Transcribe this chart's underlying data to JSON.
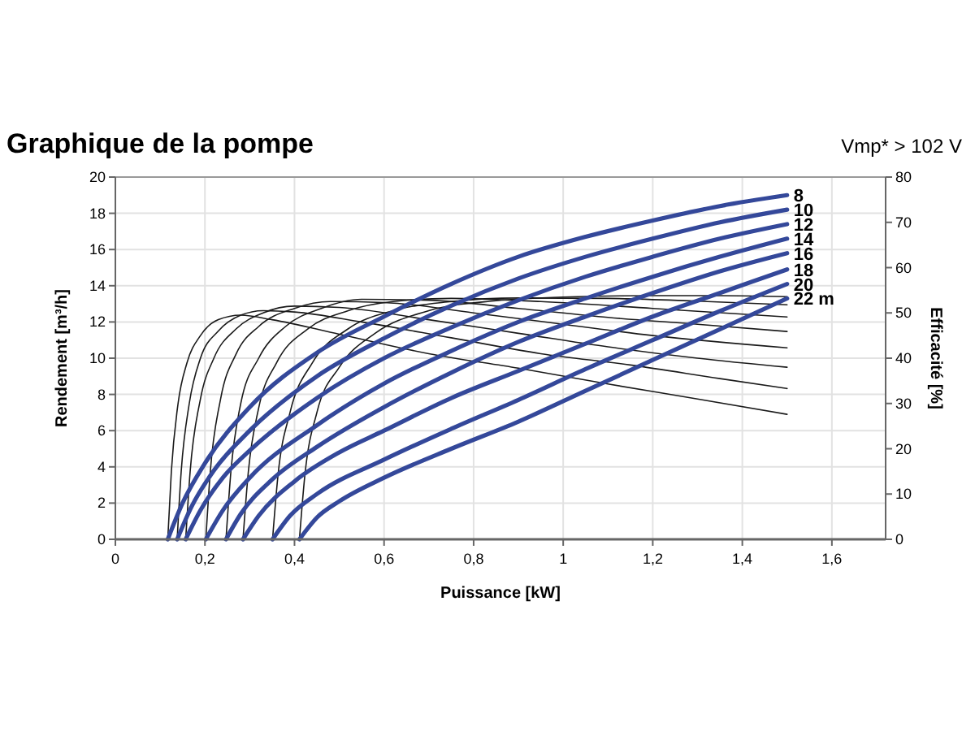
{
  "chart_data": {
    "type": "line",
    "title": "Graphique de la pompe",
    "annotations": [
      "Vmp* > 102 V"
    ],
    "xlabel": "Puissance [kW]",
    "ylabel": "Rendement [m³/h]",
    "y2label": "Efficacité [%]",
    "xlim": [
      0,
      1.72
    ],
    "xticks": [
      0,
      {
        "value": 0.2,
        "label": "0,2"
      },
      {
        "value": 0.4,
        "label": "0,4"
      },
      {
        "value": 0.6,
        "label": "0,6"
      },
      {
        "value": 0.8,
        "label": "0,8"
      },
      1,
      {
        "value": 1.2,
        "label": "1,2"
      },
      {
        "value": 1.4,
        "label": "1,4"
      },
      {
        "value": 1.6,
        "label": "1,6"
      }
    ],
    "ylim": [
      0,
      20
    ],
    "yticks": [
      0,
      2,
      4,
      6,
      8,
      10,
      12,
      14,
      16,
      18,
      20
    ],
    "y2lim": [
      0,
      80
    ],
    "y2ticks": [
      0,
      10,
      20,
      30,
      40,
      50,
      60,
      70,
      80
    ],
    "grid": true,
    "marker": "none",
    "line_style": "solid",
    "series": [
      {
        "axis": "y2",
        "color": "#1a1a1a",
        "x": [
          0.117,
          0.125,
          0.14,
          0.16,
          0.19,
          0.23,
          0.28,
          0.35,
          0.5,
          0.7,
          0.9,
          1.1,
          1.3,
          1.5
        ],
        "values": [
          0,
          15,
          30,
          39,
          45,
          48.5,
          49.5,
          48.5,
          45.3,
          41,
          37.8,
          34.3,
          31,
          27.6
        ]
      },
      {
        "axis": "y2",
        "color": "#1a1a1a",
        "x": [
          0.138,
          0.147,
          0.165,
          0.19,
          0.23,
          0.28,
          0.33,
          0.4,
          0.55,
          0.75,
          0.95,
          1.15,
          1.35,
          1.5
        ],
        "values": [
          0,
          15,
          30,
          40,
          46,
          49.5,
          50.5,
          50.2,
          48,
          44.5,
          41,
          38.5,
          35.5,
          33.3
        ]
      },
      {
        "axis": "y2",
        "color": "#1a1a1a",
        "x": [
          0.157,
          0.167,
          0.19,
          0.22,
          0.27,
          0.33,
          0.4,
          0.5,
          0.7,
          0.9,
          1.1,
          1.3,
          1.5
        ],
        "values": [
          0,
          15,
          31,
          40,
          46.5,
          50,
          51.5,
          51.2,
          48.5,
          45.5,
          42.5,
          40,
          38
        ]
      },
      {
        "axis": "y2",
        "color": "#1a1a1a",
        "x": [
          0.202,
          0.212,
          0.235,
          0.27,
          0.32,
          0.4,
          0.48,
          0.6,
          0.8,
          1.0,
          1.2,
          1.5
        ],
        "values": [
          0,
          15,
          31,
          41,
          47,
          51,
          52.5,
          52.3,
          50,
          47.5,
          45,
          42.3
        ]
      },
      {
        "axis": "y2",
        "color": "#1a1a1a",
        "x": [
          0.247,
          0.258,
          0.28,
          0.32,
          0.38,
          0.46,
          0.55,
          0.7,
          0.9,
          1.1,
          1.3,
          1.5
        ],
        "values": [
          0,
          15,
          30,
          40,
          47,
          51,
          53,
          52.8,
          51,
          49,
          47.5,
          45.9
        ]
      },
      {
        "axis": "y2",
        "color": "#1a1a1a",
        "x": [
          0.285,
          0.297,
          0.32,
          0.36,
          0.43,
          0.52,
          0.62,
          0.75,
          0.95,
          1.2,
          1.5
        ],
        "values": [
          0,
          15,
          29,
          39,
          46.5,
          50.5,
          52.5,
          53.2,
          52.5,
          51,
          49.1
        ]
      },
      {
        "axis": "y2",
        "color": "#1a1a1a",
        "x": [
          0.351,
          0.363,
          0.39,
          0.44,
          0.52,
          0.62,
          0.75,
          0.9,
          1.1,
          1.3,
          1.5
        ],
        "values": [
          0,
          14,
          28,
          39,
          46.5,
          50.5,
          52.5,
          53.3,
          53.2,
          52.6,
          51.8
        ]
      },
      {
        "axis": "y2",
        "color": "#1a1a1a",
        "x": [
          0.411,
          0.423,
          0.45,
          0.5,
          0.58,
          0.7,
          0.85,
          1.0,
          1.2,
          1.35,
          1.5
        ],
        "values": [
          0,
          14,
          28,
          38,
          45.5,
          50.5,
          52.7,
          53.5,
          53.8,
          53.8,
          53.6
        ]
      },
      {
        "name": "8",
        "color": "#34489a",
        "x": [
          0.117,
          0.15,
          0.2,
          0.3,
          0.45,
          0.6,
          0.75,
          0.9,
          1.05,
          1.2,
          1.35,
          1.5
        ],
        "values": [
          0,
          2,
          4.2,
          7.3,
          10.3,
          12.3,
          14.1,
          15.6,
          16.7,
          17.6,
          18.4,
          19
        ]
      },
      {
        "name": "10",
        "color": "#34489a",
        "x": [
          0.138,
          0.17,
          0.22,
          0.3,
          0.45,
          0.6,
          0.75,
          0.9,
          1.05,
          1.2,
          1.35,
          1.5
        ],
        "values": [
          0,
          1.8,
          3.8,
          6,
          9,
          11.1,
          12.9,
          14.4,
          15.6,
          16.6,
          17.5,
          18.2
        ]
      },
      {
        "name": "12",
        "color": "#34489a",
        "x": [
          0.157,
          0.19,
          0.24,
          0.3,
          0.45,
          0.6,
          0.75,
          0.9,
          1.05,
          1.2,
          1.35,
          1.5
        ],
        "values": [
          0,
          1.6,
          3.4,
          4.9,
          7.8,
          10,
          11.7,
          13.2,
          14.5,
          15.6,
          16.6,
          17.4
        ]
      },
      {
        "name": "14",
        "color": "#34489a",
        "x": [
          0.202,
          0.24,
          0.3,
          0.45,
          0.6,
          0.75,
          0.9,
          1.05,
          1.2,
          1.35,
          1.5
        ],
        "values": [
          0,
          1.6,
          3.4,
          6.3,
          8.6,
          10.4,
          12,
          13.3,
          14.5,
          15.6,
          16.6
        ]
      },
      {
        "name": "16",
        "color": "#34489a",
        "x": [
          0.247,
          0.28,
          0.35,
          0.45,
          0.6,
          0.75,
          0.9,
          1.05,
          1.2,
          1.35,
          1.5
        ],
        "values": [
          0,
          1.4,
          3.3,
          5.1,
          7.3,
          9.2,
          10.9,
          12.3,
          13.6,
          14.8,
          15.8
        ]
      },
      {
        "name": "18",
        "color": "#34489a",
        "x": [
          0.285,
          0.32,
          0.4,
          0.5,
          0.6,
          0.75,
          0.9,
          1.05,
          1.2,
          1.35,
          1.5
        ],
        "values": [
          0,
          1.3,
          3.2,
          4.8,
          6,
          7.8,
          9.3,
          10.8,
          12.3,
          13.6,
          14.9
        ]
      },
      {
        "name": "20",
        "color": "#34489a",
        "x": [
          0.351,
          0.39,
          0.45,
          0.6,
          0.75,
          0.9,
          1.05,
          1.2,
          1.35,
          1.5
        ],
        "values": [
          0,
          1.3,
          2.5,
          4.4,
          6.1,
          7.7,
          9.4,
          11,
          12.6,
          14.1
        ]
      },
      {
        "name": "22 m",
        "color": "#34489a",
        "x": [
          0.411,
          0.45,
          0.5,
          0.6,
          0.75,
          0.9,
          1.05,
          1.2,
          1.35,
          1.5
        ],
        "values": [
          0,
          1.2,
          2.1,
          3.4,
          5,
          6.5,
          8.2,
          9.9,
          11.6,
          13.3
        ]
      }
    ]
  }
}
